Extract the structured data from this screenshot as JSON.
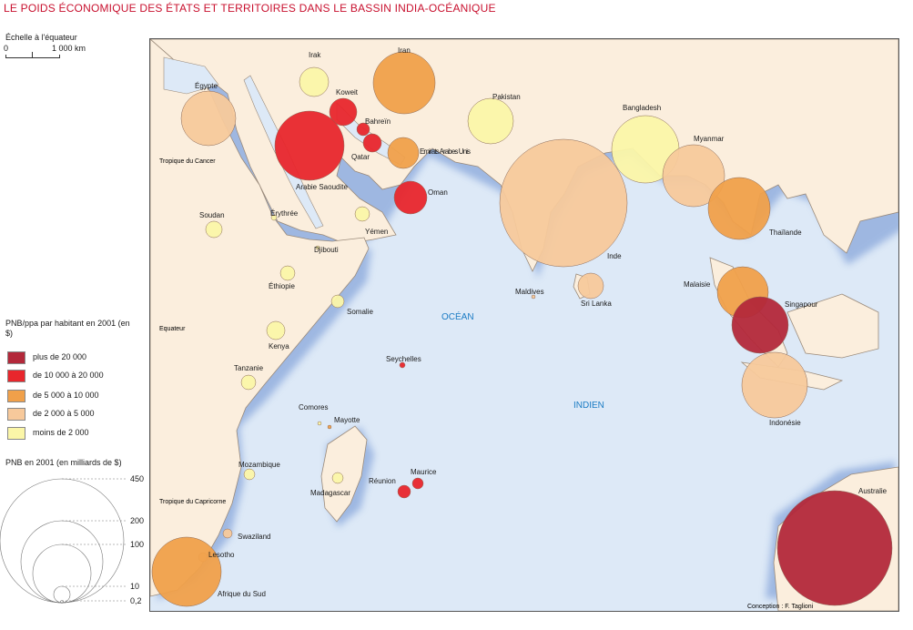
{
  "title": "LE POIDS ÉCONOMIQUE DES ÉTATS ET TERRITOIRES DANS LE BASSIN INDIA-OCÉANIQUE",
  "scale": {
    "label": "Échelle à l'équateur",
    "zero": "0",
    "distance": "1 000 km"
  },
  "legend": {
    "color_title": "PNB/ppa par habitant en 2001 (en $)",
    "classes": [
      {
        "label": "plus de 20 000",
        "color": "#b3283a"
      },
      {
        "label": "de 10 000 à 20 000",
        "color": "#e8262c"
      },
      {
        "label": "de 5 000 à 10 000",
        "color": "#f0a04a"
      },
      {
        "label": "de 2 000 à 5 000",
        "color": "#f7c99b"
      },
      {
        "label": "moins de 2 000",
        "color": "#fbf6a8"
      }
    ],
    "size_title": "PNB en 2001 (en milliards de $)",
    "size_values": [
      "450",
      "200",
      "100",
      "10",
      "0,2"
    ]
  },
  "map_labels": {
    "ocean1": "OCÉAN",
    "ocean2": "INDIEN",
    "tropic_cancer": "Tropique du Cancer",
    "tropic_capricorn": "Tropique du Capricorne",
    "equator": "Equateur",
    "credit": "Conception : F. Taglioni"
  },
  "countries": [
    {
      "name": "Irak",
      "class": 4
    },
    {
      "name": "Iran",
      "class": 2
    },
    {
      "name": "Koweit",
      "class": 1
    },
    {
      "name": "Bahreïn",
      "class": 1
    },
    {
      "name": "Qatar",
      "class": 1
    },
    {
      "name": "Emirats Arabes Unis",
      "class": 2
    },
    {
      "name": "Arabie Saoudite",
      "class": 1
    },
    {
      "name": "Oman",
      "class": 1
    },
    {
      "name": "Yémen",
      "class": 4
    },
    {
      "name": "Égypte",
      "class": 3
    },
    {
      "name": "Soudan",
      "class": 4
    },
    {
      "name": "Érythrée",
      "class": 4
    },
    {
      "name": "Djibouti",
      "class": 4
    },
    {
      "name": "Éthiopie",
      "class": 4
    },
    {
      "name": "Somalie",
      "class": 4
    },
    {
      "name": "Kenya",
      "class": 4
    },
    {
      "name": "Tanzanie",
      "class": 4
    },
    {
      "name": "Comores",
      "class": 4
    },
    {
      "name": "Mayotte",
      "class": 2
    },
    {
      "name": "Mozambique",
      "class": 4
    },
    {
      "name": "Madagascar",
      "class": 4
    },
    {
      "name": "Swaziland",
      "class": 3
    },
    {
      "name": "Lesotho",
      "class": 3
    },
    {
      "name": "Afrique du Sud",
      "class": 2
    },
    {
      "name": "Pakistan",
      "class": 4
    },
    {
      "name": "Inde",
      "class": 3
    },
    {
      "name": "Sri Lanka",
      "class": 3
    },
    {
      "name": "Maldives",
      "class": 3
    },
    {
      "name": "Bangladesh",
      "class": 4
    },
    {
      "name": "Myanmar",
      "class": 3
    },
    {
      "name": "Thaïlande",
      "class": 2
    },
    {
      "name": "Malaisie",
      "class": 2
    },
    {
      "name": "Singapour",
      "class": 0
    },
    {
      "name": "Indonésie",
      "class": 3
    },
    {
      "name": "Australie",
      "class": 0
    },
    {
      "name": "Seychelles",
      "class": 1
    },
    {
      "name": "Maurice",
      "class": 1
    },
    {
      "name": "Réunion",
      "class": 1
    }
  ]
}
